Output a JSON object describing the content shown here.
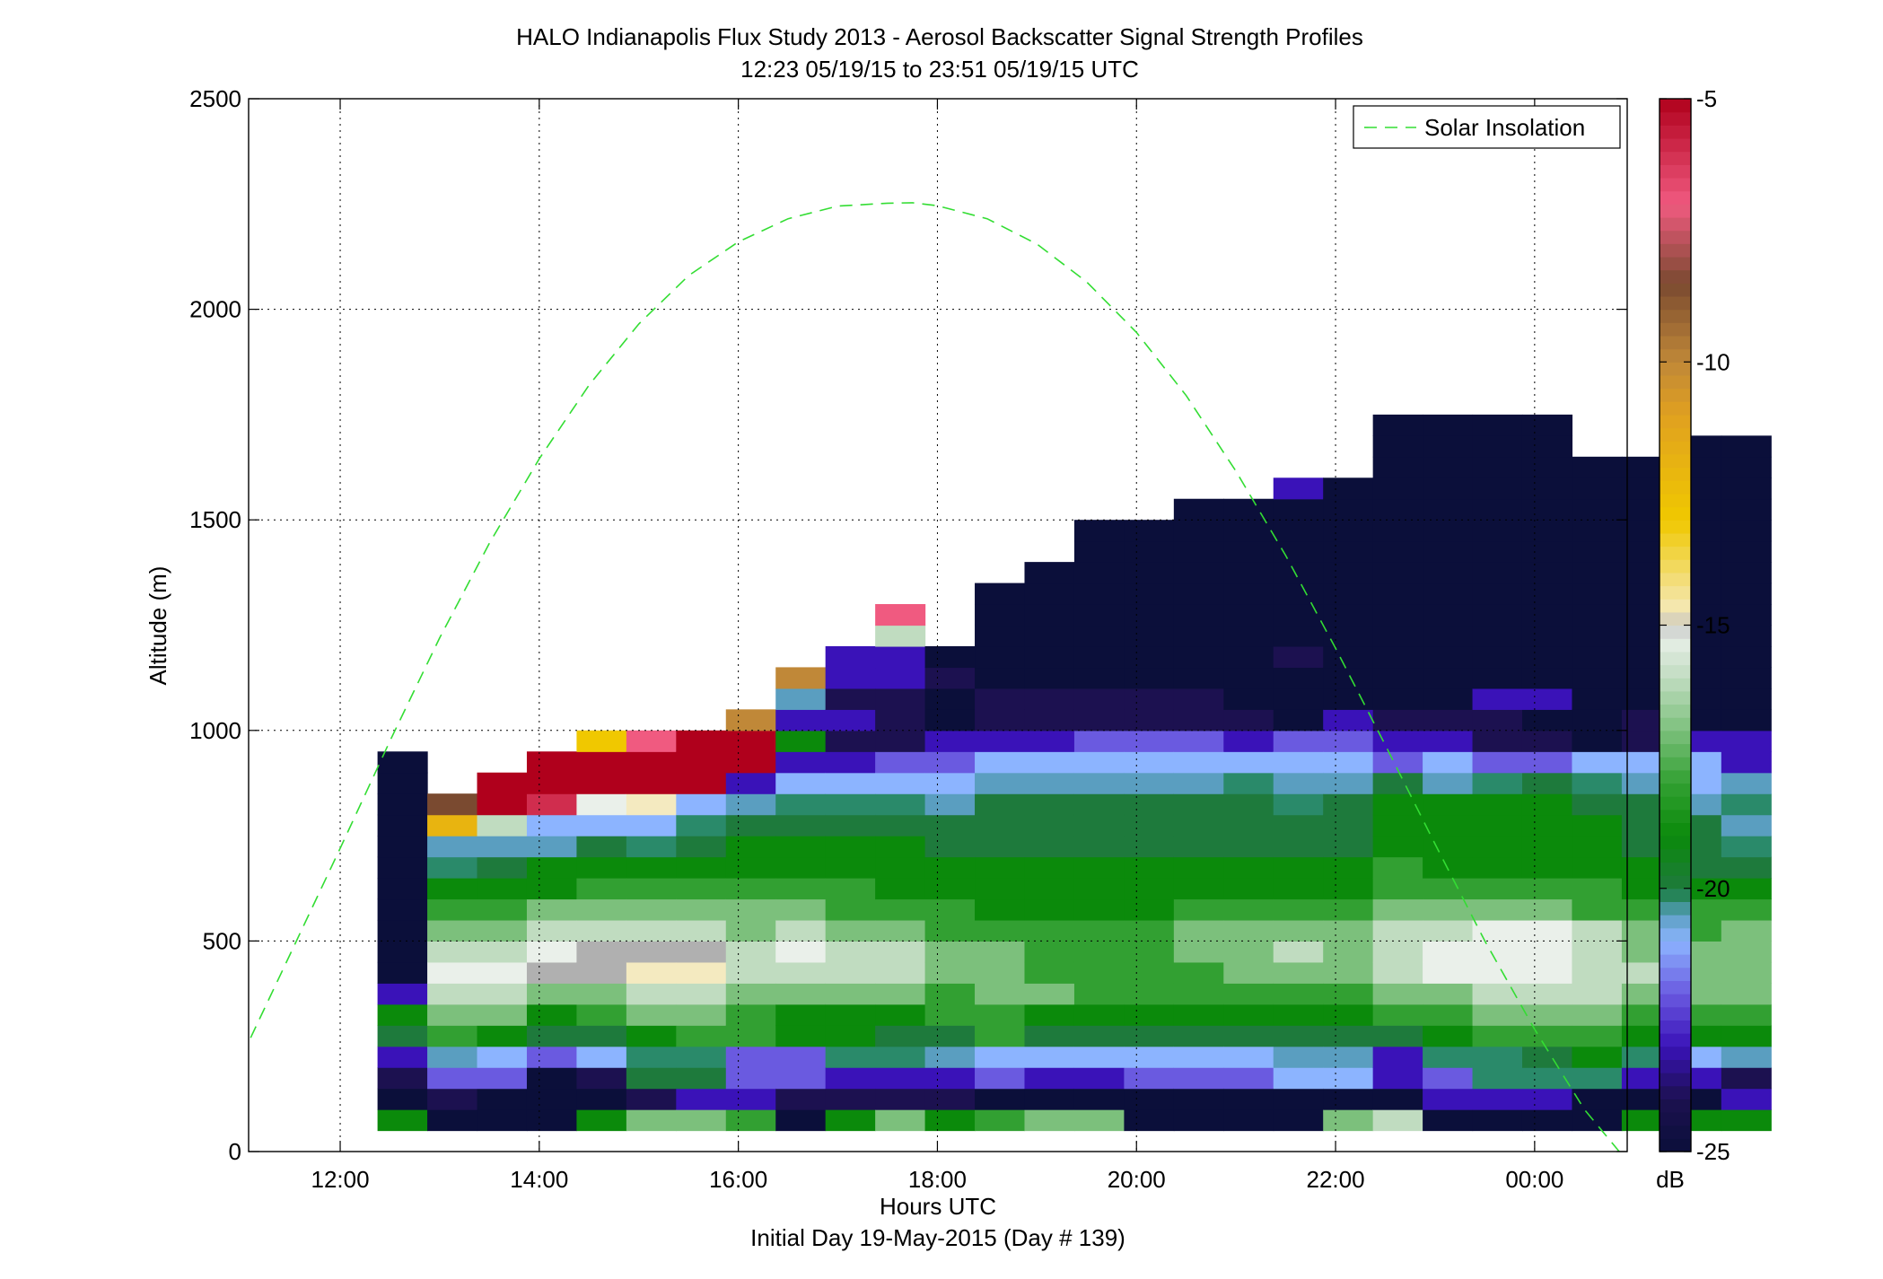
{
  "chart_data": {
    "type": "heatmap",
    "title": "HALO Indianapolis Flux Study 2013 - Aerosol Backscatter Signal Strength Profiles",
    "subtitle": "12:23 05/19/15 to 23:51 05/19/15  UTC",
    "xlabel": "Hours UTC",
    "xlabel2": "Initial Day 19-May-2015 (Day # 139)",
    "ylabel": "Altitude (m)",
    "xlim": [
      11.08,
      24.93
    ],
    "ylim": [
      0,
      2500
    ],
    "xticks": [
      12,
      14,
      16,
      18,
      20,
      22,
      24
    ],
    "xtick_labels": [
      "12:00",
      "14:00",
      "16:00",
      "18:00",
      "20:00",
      "22:00",
      "00:00"
    ],
    "yticks": [
      0,
      500,
      1000,
      1500,
      2000,
      2500
    ],
    "ytick_labels": [
      "0",
      "500",
      "1000",
      "1500",
      "2000",
      "2500"
    ],
    "grid": true,
    "legend_position": "top-right",
    "colorbar": {
      "range": [
        -25,
        -5
      ],
      "ticks": [
        -25,
        -20,
        -15,
        -10,
        -5
      ],
      "tick_labels": [
        "-25",
        "-20",
        "-15",
        "-10",
        "-5"
      ],
      "unit_label": "dB",
      "stops": [
        {
          "v": -25,
          "color": "#0b0f3a"
        },
        {
          "v": -24,
          "color": "#1c1150"
        },
        {
          "v": -23,
          "color": "#3a12b8"
        },
        {
          "v": -22,
          "color": "#6a5ae0"
        },
        {
          "v": -21,
          "color": "#8cb4ff"
        },
        {
          "v": -20.5,
          "color": "#5a9ec0"
        },
        {
          "v": -20.2,
          "color": "#2a8a6a"
        },
        {
          "v": -20,
          "color": "#1e7a3c"
        },
        {
          "v": -19,
          "color": "#0b8a0b"
        },
        {
          "v": -18,
          "color": "#32a032"
        },
        {
          "v": -17,
          "color": "#7cc07c"
        },
        {
          "v": -16,
          "color": "#c0dcc0"
        },
        {
          "v": -15.2,
          "color": "#eaf0ea"
        },
        {
          "v": -15,
          "color": "#b0b0b0"
        },
        {
          "v": -14.8,
          "color": "#f4eac0"
        },
        {
          "v": -13,
          "color": "#f0c800"
        },
        {
          "v": -11,
          "color": "#e0a020"
        },
        {
          "v": -10,
          "color": "#c08838"
        },
        {
          "v": -8.5,
          "color": "#7a4a30"
        },
        {
          "v": -7,
          "color": "#f05a80"
        },
        {
          "v": -5,
          "color": "#b0001c"
        }
      ]
    },
    "series": [
      {
        "name": "Solar Insolation",
        "style": "dashed",
        "color": "#33dd33",
        "x": [
          11.1,
          11.5,
          12.0,
          12.5,
          13.0,
          13.5,
          14.0,
          14.5,
          15.0,
          15.5,
          16.0,
          16.5,
          17.0,
          17.5,
          17.75,
          18.0,
          18.5,
          19.0,
          19.5,
          20.0,
          20.5,
          21.0,
          21.5,
          22.0,
          22.5,
          23.0,
          23.5,
          24.0,
          24.5,
          24.85
        ],
        "y": [
          270,
          470,
          720,
          975,
          1220,
          1445,
          1645,
          1820,
          1965,
          2080,
          2160,
          2215,
          2245,
          2252,
          2253,
          2246,
          2215,
          2155,
          2065,
          1945,
          1795,
          1615,
          1415,
          1195,
          965,
          730,
          500,
          290,
          100,
          0
        ]
      }
    ],
    "cells": {
      "x_start": 12.375,
      "x_step": 0.5,
      "y_start": 50,
      "y_step": 50,
      "columns": [
        [
          -19,
          -25,
          -24,
          -23,
          -20,
          -19,
          -23,
          -25,
          -25,
          -25,
          -25,
          -25,
          -25,
          -25,
          -25,
          -25,
          -25,
          -25
        ],
        [
          -25,
          -24,
          -22,
          -20.5,
          -18,
          -17,
          -16,
          -15.2,
          -16,
          -17,
          -18,
          -19,
          -20.2,
          -20.5,
          -12,
          -8.5
        ],
        [
          -25,
          -25,
          -22,
          -21,
          -19,
          -17,
          -16,
          -15.2,
          -16,
          -17,
          -18,
          -19,
          -20,
          -20.5,
          -16,
          -5,
          -5
        ],
        [
          -25,
          -25,
          -25,
          -22,
          -20,
          -19,
          -17,
          -15,
          -15.2,
          -16,
          -17,
          -19,
          -19,
          -20.5,
          -21,
          -6,
          -5,
          -5
        ],
        [
          -19,
          -25,
          -24,
          -21,
          -20,
          -18,
          -17,
          -15,
          -15,
          -16,
          -17,
          -18,
          -19,
          -20,
          -21,
          -15.2,
          -5,
          -5,
          -13
        ],
        [
          -17,
          -24,
          -20,
          -20.2,
          -19,
          -17,
          -16,
          -14.8,
          -15,
          -16,
          -17,
          -18,
          -19,
          -20.2,
          -21,
          -14.8,
          -5,
          -5,
          -7
        ],
        [
          -17,
          -23,
          -20,
          -20.2,
          -18,
          -17,
          -16,
          -14.8,
          -15,
          -16,
          -17,
          -18,
          -19,
          -20,
          -20.2,
          -21,
          -5,
          -5,
          -5
        ],
        [
          -18,
          -23,
          -22,
          -22,
          -18,
          -18,
          -17,
          -16,
          -16,
          -17,
          -17,
          -18,
          -19,
          -19,
          -20,
          -20.5,
          -23,
          -5,
          -5,
          -10
        ],
        [
          -25,
          -24,
          -22,
          -22,
          -19,
          -19,
          -17,
          -16,
          -15.2,
          -16,
          -17,
          -18,
          -19,
          -19,
          -20,
          -20.2,
          -21,
          -23,
          -19,
          -23,
          -20.5,
          -10
        ],
        [
          -19,
          -24,
          -23,
          -20.2,
          -19,
          -19,
          -17,
          -16,
          -16,
          -17,
          -18,
          -18,
          -19,
          -19,
          -20,
          -20.2,
          -21,
          -23,
          -24,
          -23,
          -24,
          -23,
          -23
        ],
        [
          -17,
          -24,
          -23,
          -20.2,
          -20,
          -19,
          -17,
          -16,
          -16,
          -17,
          -18,
          -19,
          -19,
          -19,
          -20,
          -20.2,
          -21,
          -22,
          -24,
          -24,
          -24,
          -23,
          -23,
          -16,
          -7
        ],
        [
          -19,
          -24,
          -23,
          -20.5,
          -20,
          -18,
          -18,
          -17,
          -17,
          -18,
          -18,
          -19,
          -19,
          -20,
          -20,
          -20.5,
          -21,
          -22,
          -23,
          -25,
          -25,
          -24,
          -25
        ],
        [
          -18,
          -25,
          -22,
          -21,
          -18,
          -18,
          -17,
          -17,
          -17,
          -18,
          -19,
          -19,
          -19,
          -20,
          -20,
          -20,
          -20.5,
          -21,
          -23,
          -24,
          -24,
          -25,
          -25,
          -25,
          -25,
          -25
        ],
        [
          -17,
          -25,
          -23,
          -21,
          -20,
          -19,
          -17,
          -18,
          -18,
          -18,
          -19,
          -19,
          -19,
          -20,
          -20,
          -20,
          -20.5,
          -21,
          -23,
          -24,
          -24,
          -25,
          -25,
          -25,
          -25,
          -25,
          -25
        ],
        [
          -17,
          -25,
          -23,
          -21,
          -20,
          -19,
          -18,
          -18,
          -18,
          -18,
          -19,
          -19,
          -19,
          -20,
          -20,
          -20,
          -20.5,
          -21,
          -22,
          -24,
          -24,
          -25,
          -25,
          -25,
          -25,
          -25,
          -25,
          -25,
          -25
        ],
        [
          -25,
          -25,
          -22,
          -21,
          -20,
          -19,
          -18,
          -18,
          -18,
          -18,
          -19,
          -19,
          -19,
          -20,
          -20,
          -20,
          -20.5,
          -21,
          -22,
          -24,
          -24,
          -25,
          -25,
          -25,
          -25,
          -25,
          -25,
          -25,
          -25
        ],
        [
          -25,
          -25,
          -22,
          -21,
          -20,
          -19,
          -18,
          -18,
          -17,
          -17,
          -18,
          -19,
          -19,
          -20,
          -20,
          -20,
          -20.5,
          -21,
          -22,
          -24,
          -24,
          -25,
          -25,
          -25,
          -25,
          -25,
          -25,
          -25,
          -25,
          -25
        ],
        [
          -25,
          -25,
          -22,
          -21,
          -20,
          -19,
          -18,
          -17,
          -17,
          -17,
          -18,
          -19,
          -19,
          -20,
          -20,
          -20,
          -20.2,
          -21,
          -23,
          -24,
          -25,
          -25,
          -25,
          -25,
          -25,
          -25,
          -25,
          -25,
          -25,
          -25
        ],
        [
          -25,
          -25,
          -21,
          -20.5,
          -20,
          -19,
          -18,
          -17,
          -16,
          -17,
          -18,
          -19,
          -19,
          -20,
          -20,
          -20.2,
          -20.5,
          -21,
          -22,
          -25,
          -25,
          -25,
          -24,
          -25,
          -25,
          -25,
          -25,
          -25,
          -25,
          -25,
          -23
        ],
        [
          -17,
          -25,
          -21,
          -20.5,
          -20,
          -19,
          -18,
          -17,
          -17,
          -17,
          -18,
          -19,
          -19,
          -20,
          -20,
          -20,
          -20.5,
          -21,
          -22,
          -23,
          -25,
          -25,
          -25,
          -25,
          -25,
          -25,
          -25,
          -25,
          -25,
          -25,
          -25
        ],
        [
          -16,
          -25,
          -23,
          -23,
          -20,
          -18,
          -17,
          -16,
          -16,
          -16,
          -17,
          -18,
          -18,
          -19,
          -19,
          -19,
          -20,
          -22,
          -23,
          -24,
          -25,
          -25,
          -25,
          -25,
          -25,
          -25,
          -25,
          -25,
          -25,
          -25,
          -25,
          -25,
          -25,
          -25
        ],
        [
          -25,
          -23,
          -22,
          -20.2,
          -19,
          -18,
          -17,
          -15.2,
          -15.2,
          -16,
          -17,
          -18,
          -19,
          -19,
          -19,
          -19,
          -20.5,
          -21,
          -23,
          -24,
          -25,
          -25,
          -25,
          -25,
          -25,
          -25,
          -25,
          -25,
          -25,
          -25,
          -25,
          -25,
          -25,
          -25
        ],
        [
          -25,
          -23,
          -20.2,
          -20.2,
          -18,
          -17,
          -16,
          -15.2,
          -15.2,
          -15.2,
          -17,
          -18,
          -19,
          -19,
          -19,
          -19,
          -20.2,
          -22,
          -24,
          -24,
          -23,
          -25,
          -25,
          -25,
          -25,
          -25,
          -25,
          -25,
          -25,
          -25,
          -25,
          -25,
          -25,
          -25
        ],
        [
          -25,
          -23,
          -20.2,
          -20,
          -18,
          -17,
          -16,
          -15.2,
          -15.2,
          -15.2,
          -17,
          -18,
          -19,
          -19,
          -19,
          -19,
          -20,
          -22,
          -24,
          -25,
          -23,
          -25,
          -25,
          -25,
          -25,
          -25,
          -25,
          -25,
          -25,
          -25,
          -25,
          -25,
          -25,
          -25
        ],
        [
          -25,
          -25,
          -20.2,
          -19,
          -18,
          -17,
          -16,
          -16,
          -16,
          -16,
          -18,
          -18,
          -19,
          -19,
          -19,
          -20,
          -20.2,
          -21,
          -25,
          -25,
          -25,
          -25,
          -25,
          -25,
          -25,
          -25,
          -25,
          -25,
          -25,
          -25,
          -25,
          -25
        ],
        [
          -19,
          -25,
          -23,
          -20.2,
          -19,
          -18,
          -17,
          -16,
          -17,
          -17,
          -18,
          -19,
          -19,
          -20,
          -20,
          -20,
          -20.5,
          -21,
          -24,
          -24,
          -25,
          -25,
          -25,
          -25,
          -25,
          -25,
          -25,
          -25,
          -25,
          -25,
          -25,
          -25
        ],
        [
          -19,
          -25,
          -23,
          -21,
          -19,
          -18,
          -17,
          -17,
          -17,
          -18,
          -18,
          -19,
          -20,
          -20,
          -20,
          -20.5,
          -21,
          -21,
          -23,
          -25,
          -25,
          -25,
          -25,
          -25,
          -25,
          -25,
          -25,
          -25,
          -25,
          -25,
          -25,
          -25,
          -25
        ],
        [
          -19,
          -23,
          -24,
          -20.5,
          -19,
          -18,
          -17,
          -17,
          -17,
          -17,
          -18,
          -19,
          -20,
          -20.2,
          -20.5,
          -20.2,
          -20.5,
          -23,
          -23,
          -25,
          -25,
          -25,
          -25,
          -25,
          -25,
          -25,
          -25,
          -25,
          -25,
          -25,
          -25,
          -25,
          -25
        ]
      ]
    },
    "note": ""
  }
}
